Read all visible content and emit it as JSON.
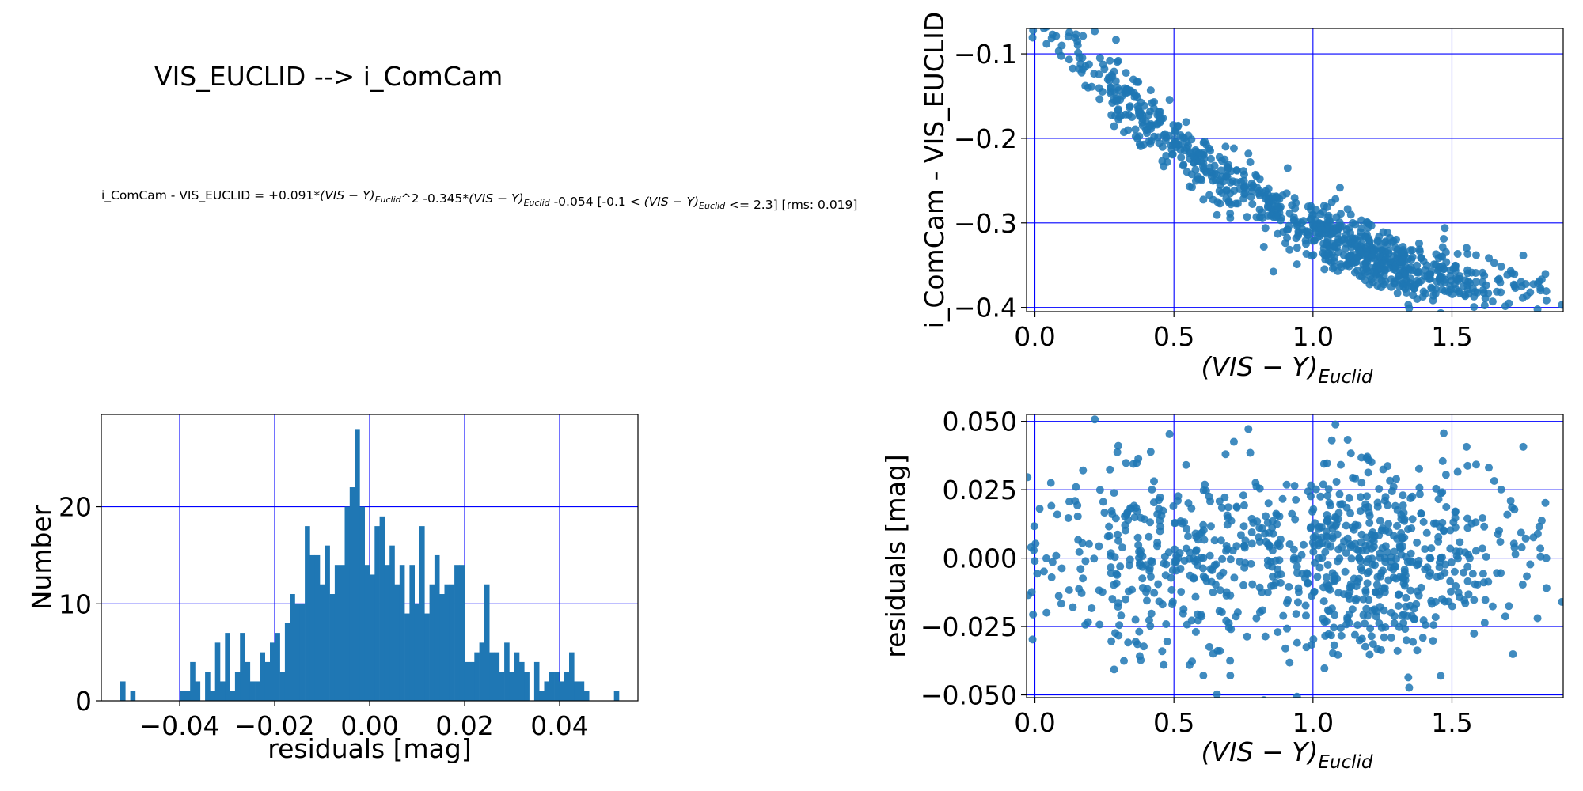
{
  "header": {
    "title": "VIS_EUCLID --> i_ComCam",
    "formula_prefix": "i_ComCam - VIS_EUCLID = +0.091*(",
    "formula_parts": [
      {
        "t": "i_ComCam - VIS_EUCLID = +0.091*",
        "i": false
      },
      {
        "t": "(VIS − Y)",
        "i": true
      },
      {
        "t": "Euclid",
        "i": true,
        "sub": true
      },
      {
        "t": "^2 -0.345*",
        "i": false
      },
      {
        "t": "(VIS − Y)",
        "i": true
      },
      {
        "t": "Euclid",
        "i": true,
        "sub": true
      },
      {
        "t": " -0.054  [-0.1 < ",
        "i": false
      },
      {
        "t": "(VIS − Y)",
        "i": true
      },
      {
        "t": "Euclid",
        "i": true,
        "sub": true
      },
      {
        "t": " <= 2.3]  [rms: 0.019]",
        "i": false
      }
    ]
  },
  "colors": {
    "marker": "#1f77b4",
    "grid": "#0000ff",
    "axis": "#000000"
  },
  "chart_data": [
    {
      "id": "histogram",
      "type": "bar",
      "xlabel": "residuals [mag]",
      "ylabel": "Number",
      "xlim": [
        -0.0565,
        0.0565
      ],
      "ylim": [
        0,
        29.5
      ],
      "xticks": [
        -0.04,
        -0.02,
        0.0,
        0.02,
        0.04
      ],
      "xtick_labels": [
        "−0.04",
        "−0.02",
        "0.00",
        "0.02",
        "0.04"
      ],
      "yticks": [
        0,
        10,
        20
      ],
      "ytick_labels": [
        "0",
        "10",
        "20"
      ],
      "bin_start": -0.0525,
      "bin_width": 0.00105,
      "counts": [
        2,
        0,
        1,
        0,
        0,
        0,
        0,
        0,
        0,
        0,
        0,
        0,
        1,
        1,
        4,
        2,
        0,
        3,
        1,
        6,
        2,
        7,
        1,
        3,
        7,
        4,
        2,
        2,
        5,
        4,
        6,
        7,
        3,
        8,
        11,
        10,
        10,
        18,
        15,
        15,
        12,
        16,
        11,
        14,
        14,
        20,
        22,
        28,
        20,
        14,
        13,
        18,
        19,
        14,
        16,
        12,
        14,
        9,
        14,
        10,
        18,
        9,
        12,
        15,
        11,
        12,
        12,
        14,
        14,
        4,
        4,
        5,
        6,
        12,
        5,
        5,
        3,
        6,
        3,
        5,
        4,
        3,
        0,
        4,
        1,
        2,
        3,
        3,
        2,
        3,
        5,
        2,
        2,
        1,
        0,
        0,
        0,
        0,
        0,
        1
      ],
      "grid": true
    },
    {
      "id": "color-term",
      "type": "scatter",
      "xlabel_base": "(VIS − Y)",
      "xlabel_sub": "Euclid",
      "ylabel": "i_ComCam - VIS_EUCLID",
      "xlim": [
        -0.03,
        1.9
      ],
      "ylim": [
        -0.405,
        -0.07
      ],
      "xticks": [
        0.0,
        0.5,
        1.0,
        1.5
      ],
      "xtick_labels": [
        "0.0",
        "0.5",
        "1.0",
        "1.5"
      ],
      "yticks": [
        -0.1,
        -0.2,
        -0.3,
        -0.4
      ],
      "ytick_labels": [
        "−0.1",
        "−0.2",
        "−0.3",
        "−0.4"
      ],
      "fit": {
        "a2": 0.091,
        "a1": -0.345,
        "a0": -0.054,
        "rms": 0.019
      },
      "n_points": 900,
      "grid": true
    },
    {
      "id": "residuals",
      "type": "scatter",
      "xlabel_base": "(VIS − Y)",
      "xlabel_sub": "Euclid",
      "ylabel": "residuals [mag]",
      "xlim": [
        -0.03,
        1.9
      ],
      "ylim": [
        -0.051,
        0.0525
      ],
      "xticks": [
        0.0,
        0.5,
        1.0,
        1.5
      ],
      "xtick_labels": [
        "0.0",
        "0.5",
        "1.0",
        "1.5"
      ],
      "yticks": [
        0.05,
        0.025,
        0.0,
        -0.025,
        -0.05
      ],
      "ytick_labels": [
        "0.050",
        "0.025",
        "0.000",
        "−0.025",
        "−0.050"
      ],
      "n_points": 900,
      "grid": true
    }
  ]
}
